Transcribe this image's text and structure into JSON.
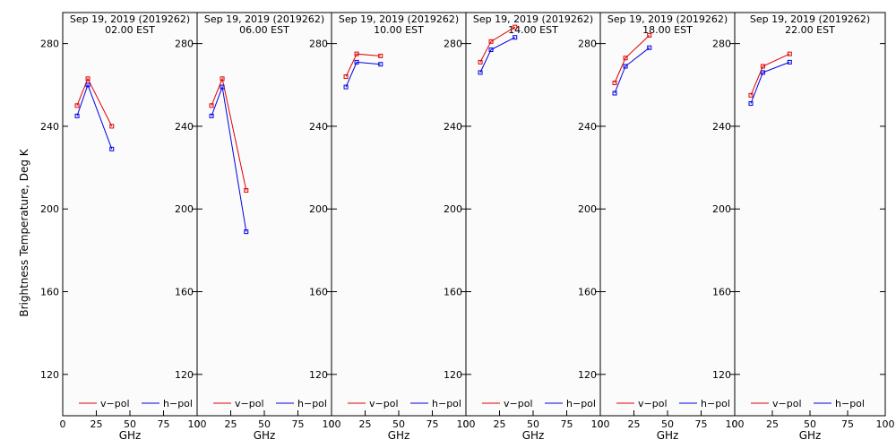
{
  "ylabel": "Brightness Temperature, Deg K",
  "colors": {
    "v_pol": "#e00000",
    "h_pol": "#0000e0"
  },
  "chart_data": {
    "type": "line",
    "ylabel": "Brightness Temperature, Deg K",
    "xlabel": "GHz",
    "xlim": [
      0,
      100
    ],
    "ylim": [
      100,
      295
    ],
    "x_ticks": [
      0,
      25,
      50,
      75,
      100
    ],
    "y_ticks": [
      120,
      160,
      200,
      240,
      280
    ],
    "grid": false,
    "legend_position": "bottom",
    "panels": [
      {
        "title_line1": "Sep 19, 2019 (2019262)",
        "title_line2": "02.00 EST",
        "series": [
          {
            "name": "v−pol",
            "x": [
              10.7,
              18.7,
              36.5
            ],
            "values": [
              250,
              263,
              240
            ]
          },
          {
            "name": "h−pol",
            "x": [
              10.7,
              18.7,
              36.5
            ],
            "values": [
              245,
              260,
              229
            ]
          }
        ]
      },
      {
        "title_line1": "Sep 19, 2019 (2019262)",
        "title_line2": "06.00 EST",
        "series": [
          {
            "name": "v−pol",
            "x": [
              10.7,
              18.7,
              36.5
            ],
            "values": [
              250,
              263,
              209
            ]
          },
          {
            "name": "h−pol",
            "x": [
              10.7,
              18.7,
              36.5
            ],
            "values": [
              245,
              259,
              189
            ]
          }
        ]
      },
      {
        "title_line1": "Sep 19, 2019 (2019262)",
        "title_line2": "10.00 EST",
        "series": [
          {
            "name": "v−pol",
            "x": [
              10.7,
              18.7,
              36.5
            ],
            "values": [
              264,
              275,
              274
            ]
          },
          {
            "name": "h−pol",
            "x": [
              10.7,
              18.7,
              36.5
            ],
            "values": [
              259,
              271,
              270
            ]
          }
        ]
      },
      {
        "title_line1": "Sep 19, 2019 (2019262)",
        "title_line2": "14.00 EST",
        "series": [
          {
            "name": "v−pol",
            "x": [
              10.7,
              18.7,
              36.5
            ],
            "values": [
              271,
              281,
              288
            ]
          },
          {
            "name": "h−pol",
            "x": [
              10.7,
              18.7,
              36.5
            ],
            "values": [
              266,
              277,
              283
            ]
          }
        ]
      },
      {
        "title_line1": "Sep 19, 2019 (2019262)",
        "title_line2": "18.00 EST",
        "series": [
          {
            "name": "v−pol",
            "x": [
              10.7,
              18.7,
              36.5
            ],
            "values": [
              261,
              273,
              284
            ]
          },
          {
            "name": "h−pol",
            "x": [
              10.7,
              18.7,
              36.5
            ],
            "values": [
              256,
              269,
              278
            ]
          }
        ]
      },
      {
        "title_line1": "Sep 19, 2019 (2019262)",
        "title_line2": "22.00 EST",
        "series": [
          {
            "name": "v−pol",
            "x": [
              10.7,
              18.7,
              36.5
            ],
            "values": [
              255,
              269,
              275
            ]
          },
          {
            "name": "h−pol",
            "x": [
              10.7,
              18.7,
              36.5
            ],
            "values": [
              251,
              266,
              271
            ]
          }
        ]
      }
    ]
  }
}
